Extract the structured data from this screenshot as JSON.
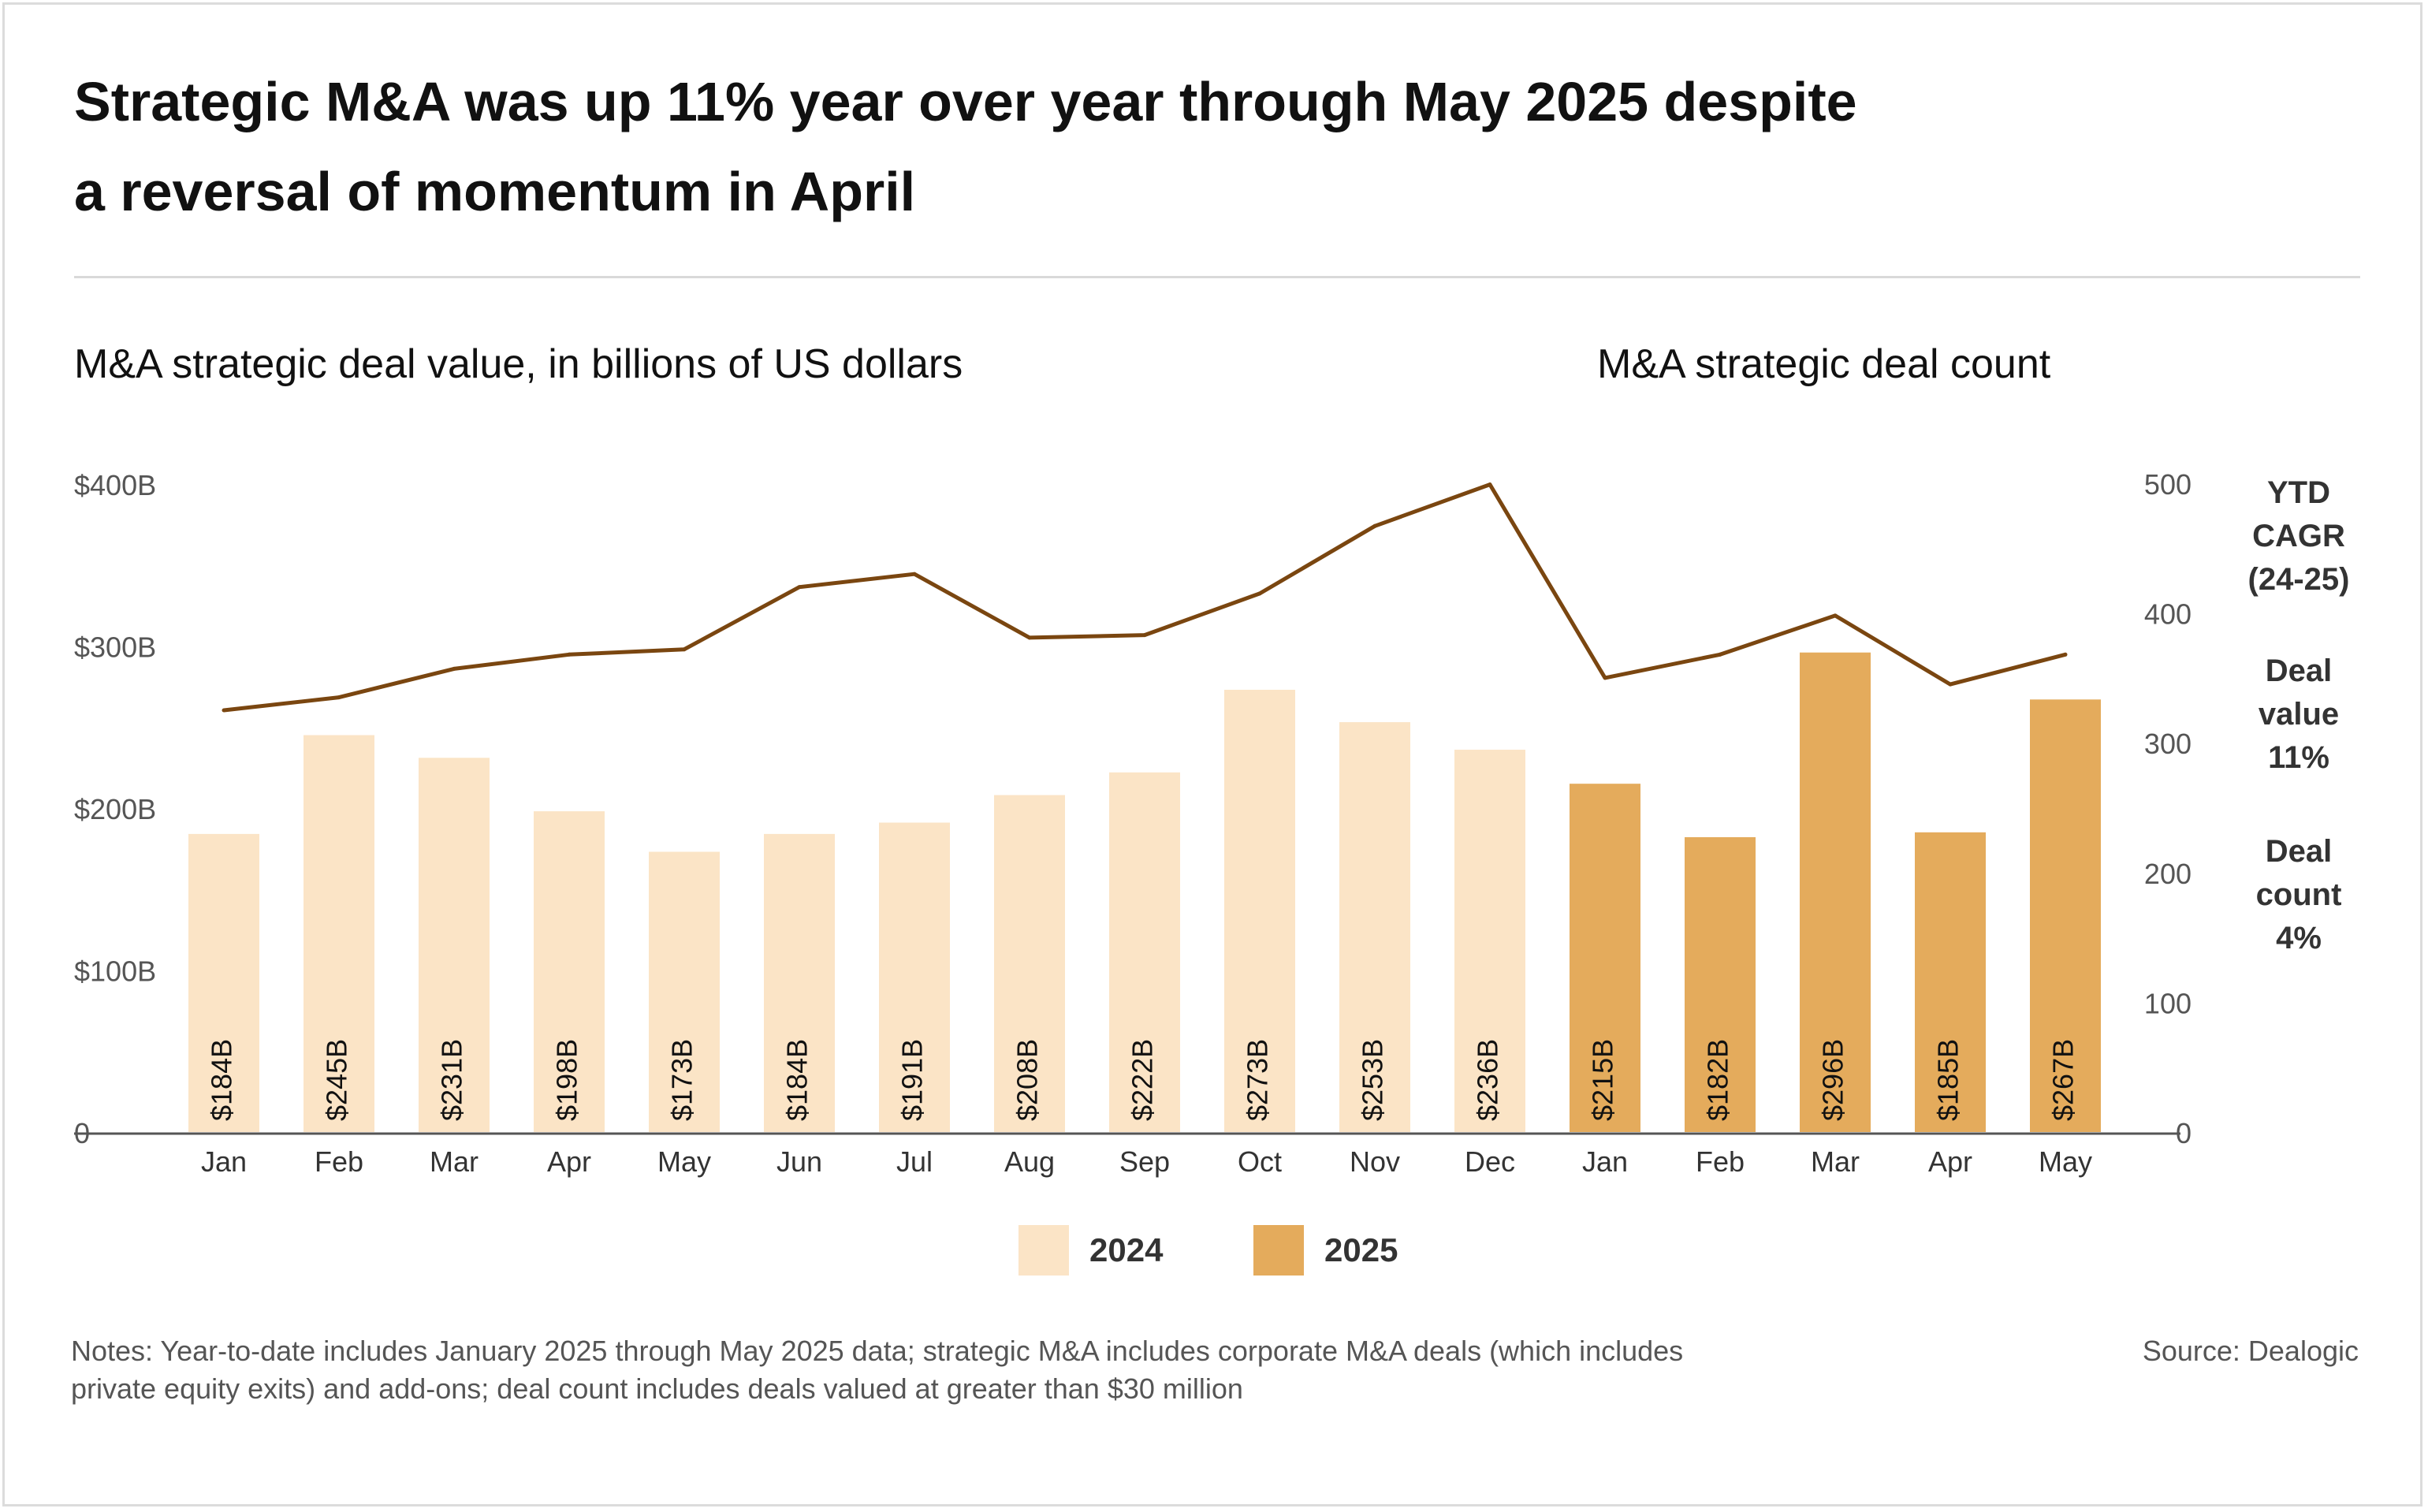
{
  "title_lines": [
    "Strategic M&A was up 11% year over year through May 2025 despite",
    "a reversal of momentum in April"
  ],
  "subtitle_left": "M&A strategic deal value, in billions of US dollars",
  "subtitle_right": "M&A strategic deal count",
  "sidebar": {
    "header": [
      "YTD",
      "CAGR",
      "(24-25)"
    ],
    "value_block": [
      "Deal",
      "value",
      "11%"
    ],
    "count_block": [
      "Deal",
      "count",
      "4%"
    ]
  },
  "legend": [
    {
      "label": "2024",
      "color": "#fbe4c6"
    },
    {
      "label": "2025",
      "color": "#e4ab5c"
    }
  ],
  "notes": "Notes: Year-to-date includes January 2025 through May 2025 data; strategic M&A includes corporate M&A deals (which includes private equity exits) and add-ons; deal count includes deals valued at greater than $30 million",
  "source": "Source: Dealogic",
  "colors": {
    "bar_2024": "#fbe4c6",
    "bar_2025": "#e4ab5c",
    "line": "#7a4610",
    "axis": "#555555",
    "text": "#333333"
  },
  "chart_data": {
    "type": "bar",
    "categories": [
      "Jan",
      "Feb",
      "Mar",
      "Apr",
      "May",
      "Jun",
      "Jul",
      "Aug",
      "Sep",
      "Oct",
      "Nov",
      "Dec",
      "Jan",
      "Feb",
      "Mar",
      "Apr",
      "May"
    ],
    "years": [
      "2024",
      "2024",
      "2024",
      "2024",
      "2024",
      "2024",
      "2024",
      "2024",
      "2024",
      "2024",
      "2024",
      "2024",
      "2025",
      "2025",
      "2025",
      "2025",
      "2025"
    ],
    "series": [
      {
        "name": "Deal value",
        "type": "bar",
        "axis": "left",
        "values": [
          184,
          245,
          231,
          198,
          173,
          184,
          191,
          208,
          222,
          273,
          253,
          236,
          215,
          182,
          296,
          185,
          267
        ],
        "labels": [
          "$184B",
          "$245B",
          "$231B",
          "$198B",
          "$173B",
          "$184B",
          "$191B",
          "$208B",
          "$222B",
          "$273B",
          "$253B",
          "$236B",
          "$215B",
          "$182B",
          "$296B",
          "$185B",
          "$267B"
        ]
      },
      {
        "name": "Deal count",
        "type": "line",
        "axis": "right",
        "values": [
          325,
          335,
          357,
          368,
          372,
          420,
          430,
          381,
          383,
          415,
          467,
          499,
          350,
          368,
          398,
          345,
          368
        ]
      }
    ],
    "y_left": {
      "ylim": [
        0,
        400
      ],
      "ticks": [
        0,
        100,
        200,
        300,
        400
      ],
      "tick_labels": [
        "0",
        "$100B",
        "$200B",
        "$300B",
        "$400B"
      ]
    },
    "y_right": {
      "ylim": [
        0,
        500
      ],
      "ticks": [
        0,
        100,
        200,
        300,
        400,
        500
      ],
      "tick_labels": [
        "0",
        "100",
        "200",
        "300",
        "400",
        "500"
      ]
    },
    "grid": false,
    "legend_position": "bottom-center"
  }
}
